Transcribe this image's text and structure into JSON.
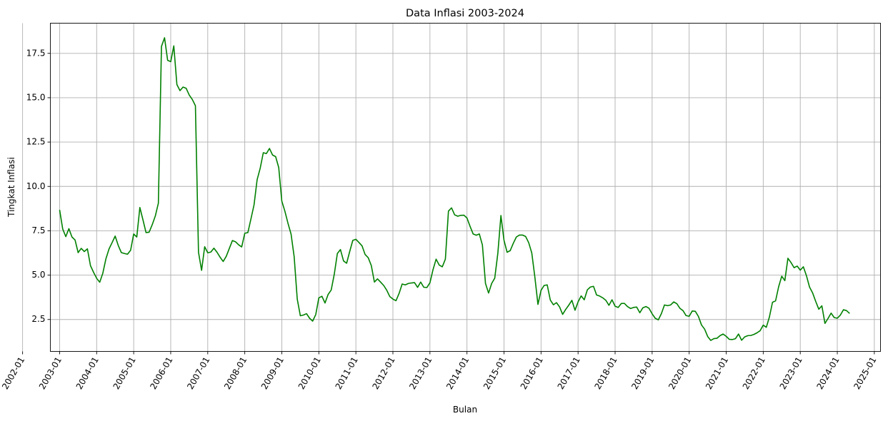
{
  "chart_data": {
    "type": "line",
    "title": "Data Inflasi 2003-2024",
    "xlabel": "Bulan",
    "ylabel": "Tingkat Inflasi",
    "grid": true,
    "legend": "none",
    "xlim": [
      "2002-10",
      "2025-03"
    ],
    "ylim": [
      0.7,
      19.2
    ],
    "x_ticks": [
      "2002-01",
      "2003-01",
      "2004-01",
      "2005-01",
      "2006-01",
      "2007-01",
      "2008-01",
      "2009-01",
      "2010-01",
      "2011-01",
      "2012-01",
      "2013-01",
      "2014-01",
      "2015-01",
      "2016-01",
      "2017-01",
      "2018-01",
      "2019-01",
      "2020-01",
      "2021-01",
      "2022-01",
      "2023-01",
      "2024-01",
      "2025-01"
    ],
    "y_ticks": [
      "2.5",
      "5.0",
      "7.5",
      "10.0",
      "12.5",
      "15.0",
      "17.5"
    ],
    "series": [
      {
        "color": "#008000",
        "x": [
          "2003-01",
          "2003-02",
          "2003-03",
          "2003-04",
          "2003-05",
          "2003-06",
          "2003-07",
          "2003-08",
          "2003-09",
          "2003-10",
          "2003-11",
          "2003-12",
          "2004-01",
          "2004-02",
          "2004-03",
          "2004-04",
          "2004-05",
          "2004-06",
          "2004-07",
          "2004-08",
          "2004-09",
          "2004-10",
          "2004-11",
          "2004-12",
          "2005-01",
          "2005-02",
          "2005-03",
          "2005-04",
          "2005-05",
          "2005-06",
          "2005-07",
          "2005-08",
          "2005-09",
          "2005-10",
          "2005-11",
          "2005-12",
          "2006-01",
          "2006-02",
          "2006-03",
          "2006-04",
          "2006-05",
          "2006-06",
          "2006-07",
          "2006-08",
          "2006-09",
          "2006-10",
          "2006-11",
          "2006-12",
          "2007-01",
          "2007-02",
          "2007-03",
          "2007-04",
          "2007-05",
          "2007-06",
          "2007-07",
          "2007-08",
          "2007-09",
          "2007-10",
          "2007-11",
          "2007-12",
          "2008-01",
          "2008-02",
          "2008-03",
          "2008-04",
          "2008-05",
          "2008-06",
          "2008-07",
          "2008-08",
          "2008-09",
          "2008-10",
          "2008-11",
          "2008-12",
          "2009-01",
          "2009-02",
          "2009-03",
          "2009-04",
          "2009-05",
          "2009-06",
          "2009-07",
          "2009-08",
          "2009-09",
          "2009-10",
          "2009-11",
          "2009-12",
          "2010-01",
          "2010-02",
          "2010-03",
          "2010-04",
          "2010-05",
          "2010-06",
          "2010-07",
          "2010-08",
          "2010-09",
          "2010-10",
          "2010-11",
          "2010-12",
          "2011-01",
          "2011-02",
          "2011-03",
          "2011-04",
          "2011-05",
          "2011-06",
          "2011-07",
          "2011-08",
          "2011-09",
          "2011-10",
          "2011-11",
          "2011-12",
          "2012-01",
          "2012-02",
          "2012-03",
          "2012-04",
          "2012-05",
          "2012-06",
          "2012-07",
          "2012-08",
          "2012-09",
          "2012-10",
          "2012-11",
          "2012-12",
          "2013-01",
          "2013-02",
          "2013-03",
          "2013-04",
          "2013-05",
          "2013-06",
          "2013-07",
          "2013-08",
          "2013-09",
          "2013-10",
          "2013-11",
          "2013-12",
          "2014-01",
          "2014-02",
          "2014-03",
          "2014-04",
          "2014-05",
          "2014-06",
          "2014-07",
          "2014-08",
          "2014-09",
          "2014-10",
          "2014-11",
          "2014-12",
          "2015-01",
          "2015-02",
          "2015-03",
          "2015-04",
          "2015-05",
          "2015-06",
          "2015-07",
          "2015-08",
          "2015-09",
          "2015-10",
          "2015-11",
          "2015-12",
          "2016-01",
          "2016-02",
          "2016-03",
          "2016-04",
          "2016-05",
          "2016-06",
          "2016-07",
          "2016-08",
          "2016-09",
          "2016-10",
          "2016-11",
          "2016-12",
          "2017-01",
          "2017-02",
          "2017-03",
          "2017-04",
          "2017-05",
          "2017-06",
          "2017-07",
          "2017-08",
          "2017-09",
          "2017-10",
          "2017-11",
          "2017-12",
          "2018-01",
          "2018-02",
          "2018-03",
          "2018-04",
          "2018-05",
          "2018-06",
          "2018-07",
          "2018-08",
          "2018-09",
          "2018-10",
          "2018-11",
          "2018-12",
          "2019-01",
          "2019-02",
          "2019-03",
          "2019-04",
          "2019-05",
          "2019-06",
          "2019-07",
          "2019-08",
          "2019-09",
          "2019-10",
          "2019-11",
          "2019-12",
          "2020-01",
          "2020-02",
          "2020-03",
          "2020-04",
          "2020-05",
          "2020-06",
          "2020-07",
          "2020-08",
          "2020-09",
          "2020-10",
          "2020-11",
          "2020-12",
          "2021-01",
          "2021-02",
          "2021-03",
          "2021-04",
          "2021-05",
          "2021-06",
          "2021-07",
          "2021-08",
          "2021-09",
          "2021-10",
          "2021-11",
          "2021-12",
          "2022-01",
          "2022-02",
          "2022-03",
          "2022-04",
          "2022-05",
          "2022-06",
          "2022-07",
          "2022-08",
          "2022-09",
          "2022-10",
          "2022-11",
          "2022-12",
          "2023-01",
          "2023-02",
          "2023-03",
          "2023-04",
          "2023-05",
          "2023-06",
          "2023-07",
          "2023-08",
          "2023-09",
          "2023-10",
          "2023-11",
          "2023-12",
          "2024-01",
          "2024-02",
          "2024-03",
          "2024-04",
          "2024-05"
        ],
        "values": [
          8.68,
          7.6,
          7.17,
          7.62,
          7.15,
          6.98,
          6.27,
          6.51,
          6.33,
          6.48,
          5.53,
          5.16,
          4.82,
          4.6,
          5.11,
          5.92,
          6.47,
          6.83,
          7.2,
          6.67,
          6.27,
          6.22,
          6.18,
          6.4,
          7.32,
          7.15,
          8.81,
          8.12,
          7.4,
          7.42,
          7.84,
          8.33,
          9.06,
          17.89,
          18.38,
          17.11,
          17.03,
          17.92,
          15.74,
          15.4,
          15.6,
          15.53,
          15.15,
          14.9,
          14.55,
          6.29,
          5.27,
          6.6,
          6.26,
          6.3,
          6.52,
          6.29,
          6.01,
          5.77,
          6.06,
          6.51,
          6.95,
          6.88,
          6.71,
          6.59,
          7.36,
          7.4,
          8.17,
          8.96,
          10.38,
          11.03,
          11.9,
          11.85,
          12.14,
          11.77,
          11.68,
          11.06,
          9.17,
          8.6,
          7.92,
          7.31,
          6.04,
          3.65,
          2.71,
          2.75,
          2.83,
          2.57,
          2.41,
          2.78,
          3.72,
          3.81,
          3.43,
          3.91,
          4.16,
          5.05,
          6.22,
          6.44,
          5.8,
          5.67,
          6.33,
          6.96,
          7.02,
          6.84,
          6.65,
          6.16,
          5.98,
          5.54,
          4.61,
          4.79,
          4.61,
          4.42,
          4.15,
          3.79,
          3.65,
          3.56,
          3.97,
          4.5,
          4.45,
          4.53,
          4.56,
          4.58,
          4.31,
          4.61,
          4.32,
          4.3,
          4.57,
          5.31,
          5.9,
          5.57,
          5.47,
          5.9,
          8.61,
          8.79,
          8.4,
          8.32,
          8.37,
          8.38,
          8.22,
          7.75,
          7.32,
          7.25,
          7.32,
          6.7,
          4.53,
          3.99,
          4.53,
          4.83,
          6.23,
          8.36,
          6.96,
          6.29,
          6.38,
          6.79,
          7.15,
          7.26,
          7.26,
          7.18,
          6.83,
          6.25,
          4.89,
          3.35,
          4.14,
          4.42,
          4.45,
          3.6,
          3.33,
          3.45,
          3.21,
          2.79,
          3.07,
          3.31,
          3.58,
          3.02,
          3.49,
          3.83,
          3.61,
          4.17,
          4.33,
          4.37,
          3.88,
          3.82,
          3.72,
          3.58,
          3.3,
          3.61,
          3.25,
          3.18,
          3.4,
          3.41,
          3.23,
          3.12,
          3.18,
          3.2,
          2.88,
          3.16,
          3.23,
          3.13,
          2.82,
          2.57,
          2.48,
          2.83,
          3.32,
          3.28,
          3.32,
          3.49,
          3.39,
          3.13,
          3.0,
          2.72,
          2.68,
          2.98,
          2.96,
          2.67,
          2.19,
          1.96,
          1.54,
          1.32,
          1.42,
          1.44,
          1.59,
          1.68,
          1.55,
          1.38,
          1.37,
          1.42,
          1.68,
          1.33,
          1.52,
          1.59,
          1.6,
          1.66,
          1.75,
          1.87,
          2.18,
          2.06,
          2.64,
          3.47,
          3.55,
          4.35,
          4.94,
          4.69,
          5.95,
          5.71,
          5.42,
          5.51,
          5.28,
          5.47,
          4.97,
          4.33,
          4.0,
          3.52,
          3.08,
          3.27,
          2.28,
          2.56,
          2.86,
          2.61,
          2.57,
          2.75,
          3.05,
          3.0,
          2.84
        ]
      }
    ]
  }
}
